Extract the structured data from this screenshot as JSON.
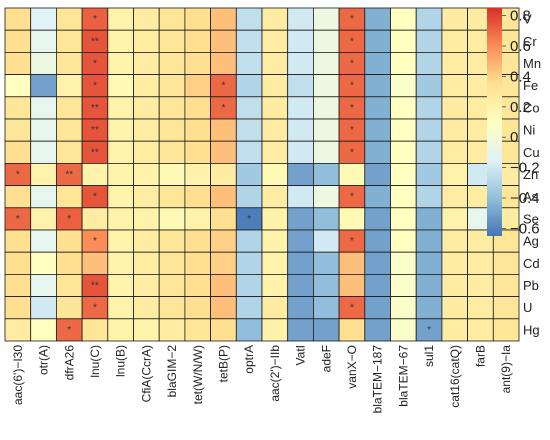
{
  "chart_data": {
    "type": "heatmap",
    "title": "",
    "xlabel": "",
    "ylabel": "",
    "rows": [
      "V",
      "Cr",
      "Mn",
      "Fe",
      "Co",
      "Ni",
      "Cu",
      "Zn",
      "As",
      "Se",
      "Ag",
      "Cd",
      "Pb",
      "U",
      "Hg"
    ],
    "columns": [
      "aac(6')−I30",
      "otr(A)",
      "dfrA26",
      "lnu(C)",
      "lnu(B)",
      "CfiA(CcrA)",
      "blaGIM−2",
      "tet(W/N/W)",
      "tetB(P)",
      "optrA",
      "aac(2')−IIb",
      "VatI",
      "adeF",
      "vanX−O",
      "blaTEM−187",
      "blaTEM−67",
      "sul1",
      "cat16(catQ)",
      "farB",
      "ant(9)−Ia"
    ],
    "values": [
      [
        0.35,
        -0.15,
        0.3,
        0.72,
        0.2,
        0.25,
        0.3,
        0.35,
        0.45,
        -0.25,
        0.25,
        -0.2,
        -0.05,
        0.7,
        -0.45,
        0.1,
        -0.3,
        0.25,
        0.25,
        0.3
      ],
      [
        0.35,
        -0.1,
        0.3,
        0.75,
        0.2,
        0.25,
        0.3,
        0.35,
        0.45,
        -0.25,
        0.25,
        -0.2,
        -0.05,
        0.7,
        -0.45,
        0.1,
        -0.3,
        0.25,
        0.25,
        0.3
      ],
      [
        0.35,
        -0.05,
        0.3,
        0.75,
        0.2,
        0.25,
        0.3,
        0.35,
        0.45,
        -0.25,
        0.25,
        -0.2,
        -0.05,
        0.7,
        -0.45,
        0.1,
        -0.3,
        0.25,
        0.25,
        0.3
      ],
      [
        0.1,
        -0.5,
        0.2,
        0.75,
        0.15,
        0.25,
        0.3,
        0.4,
        0.7,
        -0.3,
        0.25,
        -0.25,
        -0.05,
        0.7,
        -0.45,
        0.05,
        -0.35,
        0.25,
        0.25,
        0.3
      ],
      [
        0.3,
        -0.1,
        0.3,
        0.75,
        0.2,
        0.25,
        0.3,
        0.35,
        0.7,
        -0.25,
        0.25,
        -0.2,
        -0.05,
        0.7,
        -0.45,
        0.1,
        -0.3,
        0.25,
        0.25,
        0.3
      ],
      [
        0.3,
        -0.1,
        0.3,
        0.75,
        0.2,
        0.25,
        0.3,
        0.35,
        0.45,
        -0.25,
        0.25,
        -0.2,
        -0.05,
        0.7,
        -0.45,
        0.1,
        -0.3,
        0.25,
        0.25,
        0.3
      ],
      [
        0.35,
        -0.1,
        0.3,
        0.75,
        0.2,
        0.25,
        0.3,
        0.35,
        0.45,
        -0.25,
        0.25,
        -0.2,
        -0.05,
        0.7,
        -0.45,
        0.1,
        -0.3,
        0.25,
        0.25,
        0.3
      ],
      [
        0.7,
        0.2,
        0.7,
        0.2,
        0.2,
        0.2,
        0.15,
        0.2,
        0.25,
        -0.35,
        0.15,
        -0.5,
        -0.4,
        0.15,
        -0.5,
        0.1,
        -0.35,
        0.2,
        -0.2,
        0.25
      ],
      [
        0.35,
        -0.1,
        0.3,
        0.75,
        0.2,
        0.25,
        0.3,
        0.35,
        0.45,
        -0.3,
        0.25,
        -0.2,
        -0.05,
        0.7,
        -0.45,
        0.1,
        -0.3,
        0.25,
        0.25,
        0.3
      ],
      [
        0.7,
        0.2,
        0.72,
        0.25,
        0.2,
        0.2,
        0.15,
        0.2,
        0.35,
        -0.62,
        0.2,
        -0.5,
        -0.4,
        0.15,
        -0.5,
        0.1,
        -0.45,
        0.2,
        -0.1,
        0.25
      ],
      [
        0.35,
        -0.1,
        0.35,
        0.6,
        0.2,
        0.25,
        0.3,
        0.35,
        0.4,
        -0.3,
        0.2,
        -0.5,
        -0.2,
        0.7,
        -0.5,
        0.1,
        -0.45,
        0.25,
        0.25,
        0.3
      ],
      [
        0.35,
        0.1,
        0.35,
        0.45,
        0.2,
        0.25,
        0.3,
        0.35,
        0.4,
        -0.3,
        0.2,
        -0.5,
        -0.4,
        0.45,
        -0.5,
        0.05,
        -0.45,
        0.25,
        0.25,
        0.3
      ],
      [
        0.35,
        -0.1,
        0.3,
        0.75,
        0.2,
        0.25,
        0.3,
        0.35,
        0.45,
        -0.3,
        0.2,
        -0.5,
        -0.4,
        0.45,
        -0.5,
        0.05,
        -0.45,
        0.25,
        0.25,
        0.3
      ],
      [
        0.35,
        -0.2,
        0.3,
        0.7,
        0.2,
        0.25,
        0.3,
        0.35,
        0.45,
        -0.3,
        0.25,
        -0.5,
        -0.4,
        0.7,
        -0.5,
        0.05,
        -0.45,
        0.25,
        0.25,
        0.3
      ],
      [
        0.25,
        0.1,
        0.7,
        0.3,
        0.2,
        0.2,
        0.25,
        0.3,
        0.35,
        -0.4,
        0.2,
        -0.5,
        -0.5,
        0.35,
        -0.5,
        0.05,
        -0.5,
        0.25,
        0.25,
        0.3
      ]
    ],
    "significance": [
      [
        "",
        "",
        "",
        "*",
        "",
        "",
        "",
        "",
        "",
        "",
        "",
        "",
        "",
        "*",
        "",
        "",
        "",
        "",
        "",
        ""
      ],
      [
        "",
        "",
        "",
        "**",
        "",
        "",
        "",
        "",
        "",
        "",
        "",
        "",
        "",
        "*",
        "",
        "",
        "",
        "",
        "",
        ""
      ],
      [
        "",
        "",
        "",
        "*",
        "",
        "",
        "",
        "",
        "",
        "",
        "",
        "",
        "",
        "*",
        "",
        "",
        "",
        "",
        "",
        ""
      ],
      [
        "",
        "",
        "",
        "*",
        "",
        "",
        "",
        "",
        "*",
        "",
        "",
        "",
        "",
        "*",
        "",
        "",
        "",
        "",
        "",
        ""
      ],
      [
        "",
        "",
        "",
        "**",
        "",
        "",
        "",
        "",
        "*",
        "",
        "",
        "",
        "",
        "*",
        "",
        "",
        "",
        "",
        "",
        ""
      ],
      [
        "",
        "",
        "",
        "**",
        "",
        "",
        "",
        "",
        "",
        "",
        "",
        "",
        "",
        "*",
        "",
        "",
        "",
        "",
        "",
        ""
      ],
      [
        "",
        "",
        "",
        "**",
        "",
        "",
        "",
        "",
        "",
        "",
        "",
        "",
        "",
        "*",
        "",
        "",
        "",
        "",
        "",
        ""
      ],
      [
        "*",
        "",
        "**",
        "",
        "",
        "",
        "",
        "",
        "",
        "",
        "",
        "",
        "",
        "",
        "",
        "",
        "",
        "",
        "",
        ""
      ],
      [
        "",
        "",
        "",
        "*",
        "",
        "",
        "",
        "",
        "",
        "",
        "",
        "",
        "",
        "*",
        "",
        "",
        "",
        "",
        "",
        ""
      ],
      [
        "*",
        "",
        "*",
        "",
        "",
        "",
        "",
        "",
        "",
        "*",
        "",
        "",
        "",
        "",
        "",
        "",
        "",
        "",
        "",
        ""
      ],
      [
        "",
        "",
        "",
        "*",
        "",
        "",
        "",
        "",
        "",
        "",
        "",
        "",
        "",
        "*",
        "",
        "",
        "",
        "",
        "",
        ""
      ],
      [
        "",
        "",
        "",
        "",
        "",
        "",
        "",
        "",
        "",
        "",
        "",
        "",
        "",
        "",
        "",
        "",
        "",
        "",
        "",
        ""
      ],
      [
        "",
        "",
        "",
        "**",
        "",
        "",
        "",
        "",
        "",
        "",
        "",
        "",
        "",
        "",
        "",
        "",
        "",
        "",
        "",
        ""
      ],
      [
        "",
        "",
        "",
        "*",
        "",
        "",
        "",
        "",
        "",
        "",
        "",
        "",
        "",
        "*",
        "",
        "",
        "",
        "",
        "",
        ""
      ],
      [
        "",
        "",
        "*",
        "",
        "",
        "",
        "",
        "",
        "",
        "",
        "",
        "",
        "",
        "",
        "",
        "",
        "*",
        "",
        "",
        ""
      ]
    ],
    "colorbar": {
      "ticks": [
        0.8,
        0.6,
        0.4,
        0.2,
        0,
        -0.2,
        -0.4,
        -0.6
      ],
      "tick_labels": [
        "0.8",
        "0.6",
        "0.4",
        "0.2",
        "0",
        "−0.2",
        "−0.4",
        "−0.6"
      ],
      "range": [
        -0.65,
        0.85
      ],
      "colors": [
        "#4575b4",
        "#91bfdb",
        "#e0f3f8",
        "#ffffbf",
        "#fee090",
        "#fc8d59",
        "#d73027"
      ]
    },
    "legend": "right"
  }
}
